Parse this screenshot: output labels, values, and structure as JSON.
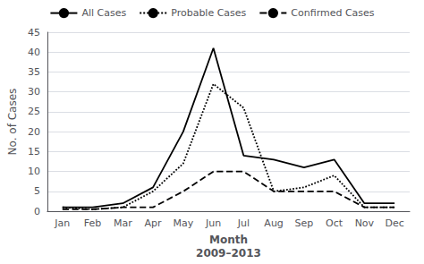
{
  "chart_data": {
    "type": "line",
    "categories": [
      "Jan",
      "Feb",
      "Mar",
      "Apr",
      "May",
      "Jun",
      "Jul",
      "Aug",
      "Sep",
      "Oct",
      "Nov",
      "Dec"
    ],
    "series": [
      {
        "name": "All Cases",
        "color": "#000000",
        "line_style": "solid",
        "values": [
          1,
          1,
          2,
          6,
          20,
          41,
          14,
          13,
          11,
          13,
          2,
          2
        ]
      },
      {
        "name": "Probable Cases",
        "color": "#000000",
        "line_style": "dotted",
        "values": [
          1,
          0.5,
          1,
          5,
          12,
          32,
          26,
          5,
          6,
          9,
          1,
          1
        ]
      },
      {
        "name": "Confirmed Cases",
        "color": "#000000",
        "line_style": "dashed",
        "values": [
          0.5,
          0.5,
          1,
          1,
          5,
          10,
          10,
          5,
          5,
          5,
          1,
          1
        ]
      }
    ],
    "xlabel": "Month\n2009–2013",
    "ylabel": "No. of Cases",
    "ylim": [
      0,
      45
    ],
    "yticks": [
      0,
      5,
      10,
      15,
      20,
      25,
      30,
      35,
      40,
      45
    ],
    "grid": true,
    "legend": "top"
  }
}
